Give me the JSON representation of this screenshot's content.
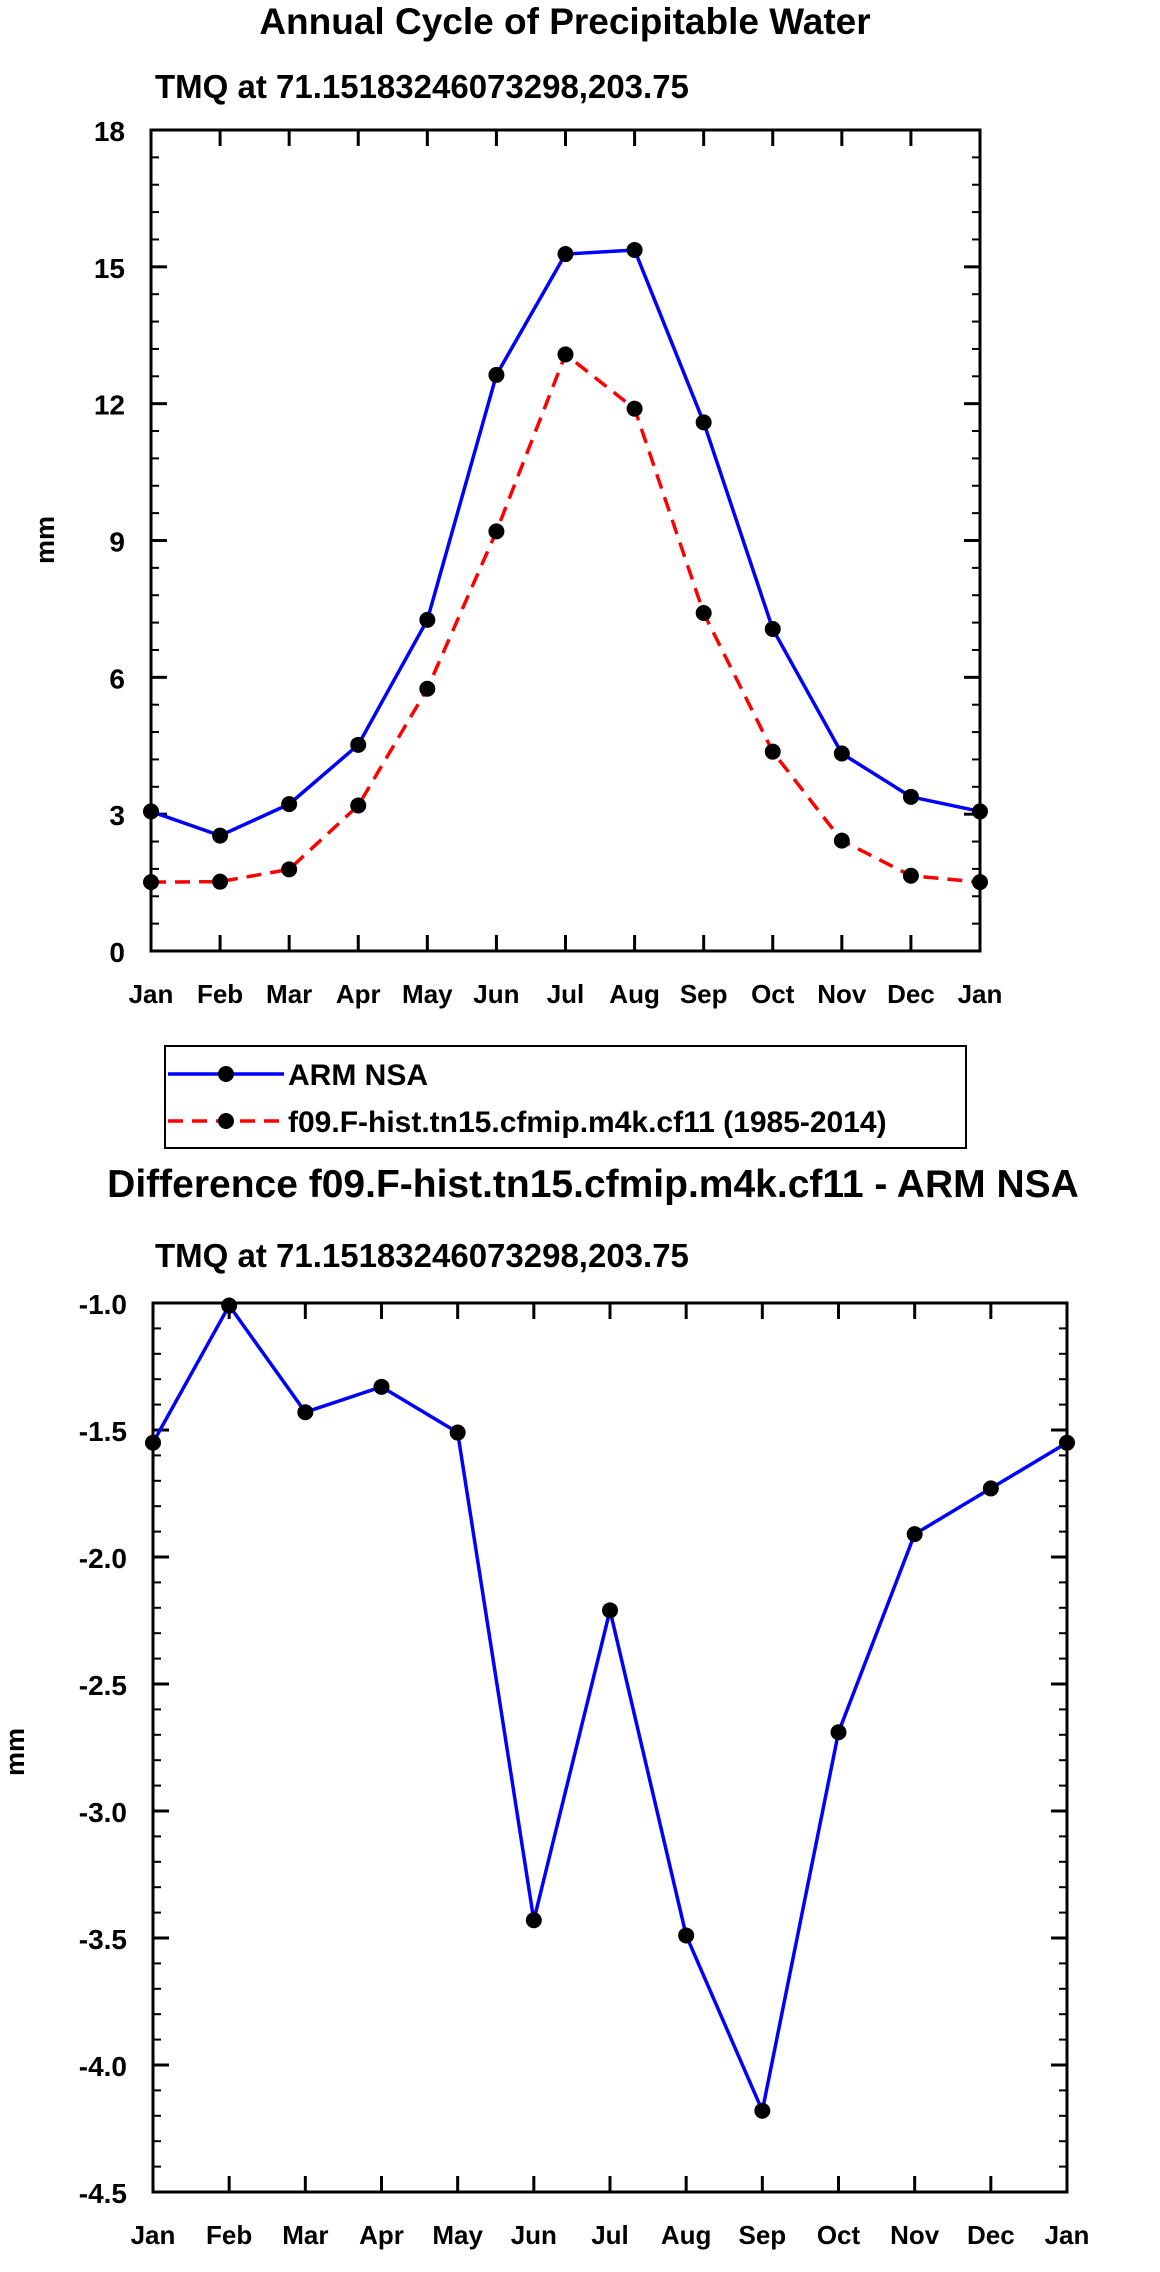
{
  "chart_data": [
    {
      "type": "line",
      "title": "Annual Cycle of Precipitable Water",
      "subtitle": "TMQ at 71.15183246073298,203.75",
      "ylabel": "mm",
      "xlabel": "",
      "categories": [
        "Jan",
        "Feb",
        "Mar",
        "Apr",
        "May",
        "Jun",
        "Jul",
        "Aug",
        "Sep",
        "Oct",
        "Nov",
        "Dec",
        "Jan"
      ],
      "ylim": [
        0,
        18
      ],
      "yticks": [
        0,
        3,
        6,
        9,
        12,
        15,
        18
      ],
      "ytick_labels": [
        "0",
        "3",
        "6",
        "9",
        "12",
        "15",
        "18"
      ],
      "legend": "below-plot",
      "series": [
        {
          "name": "ARM NSA",
          "color": "#0000ff",
          "dash": "solid",
          "values": [
            3.06,
            2.53,
            3.22,
            4.52,
            7.26,
            12.63,
            15.28,
            15.37,
            11.59,
            7.06,
            4.33,
            3.38,
            3.06
          ]
        },
        {
          "name": "f09.F-hist.tn15.cfmip.m4k.cf11 (1985-2014)",
          "color": "#ff0000",
          "dash": "dashed",
          "values": [
            1.51,
            1.52,
            1.79,
            3.19,
            5.75,
            9.2,
            13.08,
            11.89,
            7.41,
            4.37,
            2.42,
            1.65,
            1.51
          ]
        }
      ]
    },
    {
      "type": "line",
      "title": "Difference f09.F-hist.tn15.cfmip.m4k.cf11 - ARM NSA",
      "subtitle": "TMQ at 71.15183246073298,203.75",
      "ylabel": "mm",
      "xlabel": "",
      "categories": [
        "Jan",
        "Feb",
        "Mar",
        "Apr",
        "May",
        "Jun",
        "Jul",
        "Aug",
        "Sep",
        "Oct",
        "Nov",
        "Dec",
        "Jan"
      ],
      "ylim": [
        -4.5,
        -1.0
      ],
      "yticks": [
        -4.5,
        -4.0,
        -3.5,
        -3.0,
        -2.5,
        -2.0,
        -1.5,
        -1.0
      ],
      "ytick_labels": [
        "-4.5",
        "-4.0",
        "-3.5",
        "-3.0",
        "-2.5",
        "-2.0",
        "-1.5",
        "-1.0"
      ],
      "series": [
        {
          "name": "Difference",
          "color": "#0000ff",
          "dash": "solid",
          "values": [
            -1.55,
            -1.01,
            -1.43,
            -1.33,
            -1.51,
            -3.43,
            -2.21,
            -3.49,
            -4.18,
            -2.69,
            -1.91,
            -1.73,
            -1.55
          ]
        }
      ]
    }
  ]
}
